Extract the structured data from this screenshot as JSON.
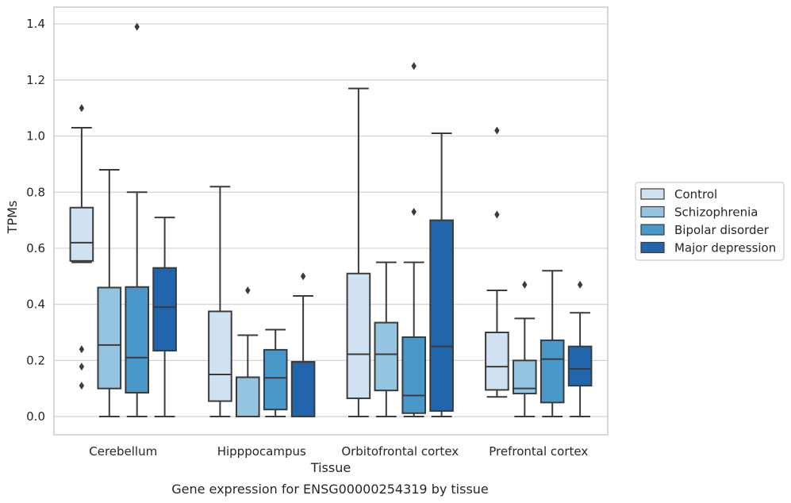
{
  "chart_data": {
    "type": "box",
    "xlabel": "Tissue",
    "ylabel": "TPMs",
    "caption": "Gene expression for ENSG00000254319 by tissue",
    "ylim": [
      -0.065,
      1.46
    ],
    "yticks": [
      "0.0",
      "0.2",
      "0.4",
      "0.6",
      "0.8",
      "1.0",
      "1.2",
      "1.4"
    ],
    "ytick_values": [
      0.0,
      0.2,
      0.4,
      0.6,
      0.8,
      1.0,
      1.2,
      1.4
    ],
    "grid": true,
    "legend_position": "right",
    "categories": [
      "Cerebellum",
      "Hipppocampus",
      "Orbitofrontal cortex",
      "Prefrontal cortex"
    ],
    "series": [
      {
        "name": "Control",
        "color": "#d0e1f2",
        "boxes": [
          {
            "whislo": 0.55,
            "q1": 0.555,
            "med": 0.62,
            "q3": 0.745,
            "whishi": 1.03,
            "fliers": [
              1.1,
              0.24,
              0.178,
              0.11
            ]
          },
          {
            "whislo": 0.0,
            "q1": 0.055,
            "med": 0.15,
            "q3": 0.375,
            "whishi": 0.82,
            "fliers": []
          },
          {
            "whislo": 0.0,
            "q1": 0.065,
            "med": 0.222,
            "q3": 0.51,
            "whishi": 1.17,
            "fliers": []
          },
          {
            "whislo": 0.07,
            "q1": 0.095,
            "med": 0.178,
            "q3": 0.3,
            "whishi": 0.45,
            "fliers": [
              1.02,
              0.72
            ]
          }
        ]
      },
      {
        "name": "Schizophrenia",
        "color": "#94c4df",
        "boxes": [
          {
            "whislo": 0.0,
            "q1": 0.1,
            "med": 0.255,
            "q3": 0.46,
            "whishi": 0.88,
            "fliers": []
          },
          {
            "whislo": 0.0,
            "q1": 0.0,
            "med": 0.14,
            "q3": 0.14,
            "whishi": 0.29,
            "fliers": [
              0.45
            ]
          },
          {
            "whislo": 0.0,
            "q1": 0.093,
            "med": 0.222,
            "q3": 0.335,
            "whishi": 0.55,
            "fliers": []
          },
          {
            "whislo": 0.0,
            "q1": 0.082,
            "med": 0.1,
            "q3": 0.2,
            "whishi": 0.35,
            "fliers": [
              0.47
            ]
          }
        ]
      },
      {
        "name": "Bipolar disorder",
        "color": "#4a98c9",
        "boxes": [
          {
            "whislo": 0.0,
            "q1": 0.085,
            "med": 0.21,
            "q3": 0.462,
            "whishi": 0.8,
            "fliers": [
              1.39
            ]
          },
          {
            "whislo": 0.0,
            "q1": 0.025,
            "med": 0.138,
            "q3": 0.238,
            "whishi": 0.31,
            "fliers": []
          },
          {
            "whislo": 0.0,
            "q1": 0.012,
            "med": 0.075,
            "q3": 0.283,
            "whishi": 0.55,
            "fliers": [
              1.25,
              0.73
            ]
          },
          {
            "whislo": 0.0,
            "q1": 0.05,
            "med": 0.205,
            "q3": 0.272,
            "whishi": 0.52,
            "fliers": []
          }
        ]
      },
      {
        "name": "Major depression",
        "color": "#2166ac",
        "boxes": [
          {
            "whislo": 0.0,
            "q1": 0.235,
            "med": 0.39,
            "q3": 0.53,
            "whishi": 0.71,
            "fliers": []
          },
          {
            "whislo": 0.0,
            "q1": 0.0,
            "med": 0.195,
            "q3": 0.195,
            "whishi": 0.43,
            "fliers": [
              0.5
            ]
          },
          {
            "whislo": 0.0,
            "q1": 0.02,
            "med": 0.25,
            "q3": 0.7,
            "whishi": 1.01,
            "fliers": []
          },
          {
            "whislo": 0.0,
            "q1": 0.11,
            "med": 0.17,
            "q3": 0.25,
            "whishi": 0.37,
            "fliers": [
              0.47
            ]
          }
        ]
      }
    ]
  }
}
